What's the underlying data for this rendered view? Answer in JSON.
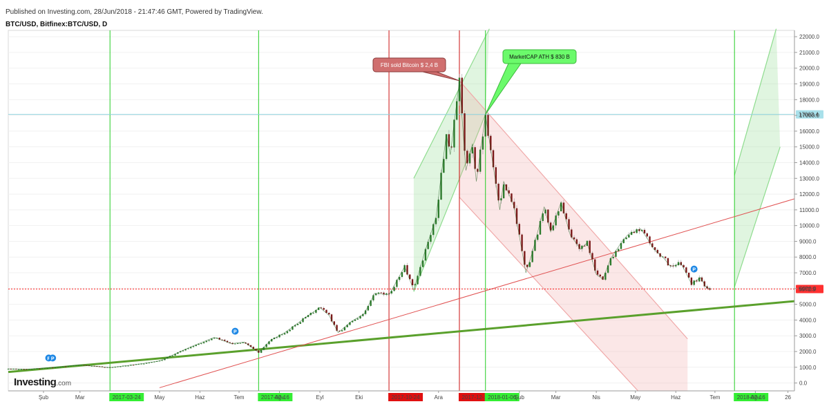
{
  "header": {
    "published": "Published on Investing.com, 28/Jun/2018 - 21:47:46 GMT, Powered by TradingView.",
    "symbol": "BTC/USD, Bitfinex:BTC/USD, D"
  },
  "logo": {
    "brand": "Investing",
    "suffix": ".com"
  },
  "chart_data": {
    "type": "candlestick",
    "title": "BTC/USD, Bitfinex:BTC/USD, D",
    "ylim": [
      -500,
      22400
    ],
    "y_ticks": [
      0,
      1000,
      2000,
      3000,
      4000,
      5000,
      6000,
      7000,
      8000,
      9000,
      10000,
      11000,
      12000,
      13000,
      14000,
      15000,
      16000,
      17000,
      18000,
      19000,
      20000,
      21000,
      22000
    ],
    "y_tick_labels": [
      "0.0",
      "1000.0",
      "2000.0",
      "3000.0",
      "4000.0",
      "5000.0",
      "6000.0",
      "7000.0",
      "8000.0",
      "9000.0",
      "10000.0",
      "11000.0",
      "12000.0",
      "13000.0",
      "14000.0",
      "15000.0",
      "16000.0",
      "17000.0",
      "18000.0",
      "19000.0",
      "20000.0",
      "21000.0",
      "22000.0"
    ],
    "x_range": [
      "2017-01-05",
      "2018-08-31"
    ],
    "x_ticks": [
      {
        "date": "2017-02-01",
        "label": "Şub"
      },
      {
        "date": "2017-03-01",
        "label": "Mar"
      },
      {
        "date": "2017-05-01",
        "label": "May"
      },
      {
        "date": "2017-06-01",
        "label": "Haz"
      },
      {
        "date": "2017-07-01",
        "label": "Tem"
      },
      {
        "date": "2017-08-01",
        "label": "Ağu"
      },
      {
        "date": "2017-09-01",
        "label": "Eyl"
      },
      {
        "date": "2017-10-01",
        "label": "Eki"
      },
      {
        "date": "2017-12-01",
        "label": "Ara"
      },
      {
        "date": "2018-02-01",
        "label": "Şub"
      },
      {
        "date": "2018-03-01",
        "label": "Mar"
      },
      {
        "date": "2018-04-01",
        "label": "Nis"
      },
      {
        "date": "2018-05-01",
        "label": "May"
      },
      {
        "date": "2018-06-01",
        "label": "Haz"
      },
      {
        "date": "2018-07-01",
        "label": "Tem"
      },
      {
        "date": "2018-08-01",
        "label": "Ağu"
      },
      {
        "date": "2018-08-26",
        "label": "26"
      }
    ],
    "price_path": [
      [
        "2017-01-05",
        900
      ],
      [
        "2017-01-20",
        880
      ],
      [
        "2017-02-10",
        1000
      ],
      [
        "2017-03-01",
        1150
      ],
      [
        "2017-03-24",
        980
      ],
      [
        "2017-04-15",
        1200
      ],
      [
        "2017-05-01",
        1400
      ],
      [
        "2017-05-25",
        2300
      ],
      [
        "2017-06-12",
        2900
      ],
      [
        "2017-06-25",
        2500
      ],
      [
        "2017-07-05",
        2600
      ],
      [
        "2017-07-16",
        1950
      ],
      [
        "2017-07-25",
        2700
      ],
      [
        "2017-08-05",
        3200
      ],
      [
        "2017-08-20",
        4100
      ],
      [
        "2017-09-01",
        4800
      ],
      [
        "2017-09-08",
        4300
      ],
      [
        "2017-09-15",
        3200
      ],
      [
        "2017-09-25",
        3900
      ],
      [
        "2017-10-05",
        4400
      ],
      [
        "2017-10-13",
        5700
      ],
      [
        "2017-10-24",
        5600
      ],
      [
        "2017-11-05",
        7400
      ],
      [
        "2017-11-12",
        5900
      ],
      [
        "2017-11-20",
        8200
      ],
      [
        "2017-11-29",
        10500
      ],
      [
        "2017-12-07",
        15800
      ],
      [
        "2017-12-10",
        14500
      ],
      [
        "2017-12-17",
        19200
      ],
      [
        "2017-12-22",
        13500
      ],
      [
        "2017-12-27",
        15200
      ],
      [
        "2017-12-30",
        12800
      ],
      [
        "2018-01-06",
        17063
      ],
      [
        "2018-01-17",
        11000
      ],
      [
        "2018-01-20",
        12800
      ],
      [
        "2018-01-28",
        11200
      ],
      [
        "2018-02-06",
        7000
      ],
      [
        "2018-02-11",
        8300
      ],
      [
        "2018-02-20",
        11200
      ],
      [
        "2018-02-25",
        9600
      ],
      [
        "2018-03-05",
        11500
      ],
      [
        "2018-03-12",
        9400
      ],
      [
        "2018-03-20",
        8500
      ],
      [
        "2018-03-25",
        8900
      ],
      [
        "2018-04-01",
        6900
      ],
      [
        "2018-04-06",
        6600
      ],
      [
        "2018-04-12",
        7900
      ],
      [
        "2018-04-20",
        8900
      ],
      [
        "2018-04-25",
        9400
      ],
      [
        "2018-05-05",
        9800
      ],
      [
        "2018-05-10",
        9200
      ],
      [
        "2018-05-15",
        8500
      ],
      [
        "2018-05-22",
        8000
      ],
      [
        "2018-05-28",
        7400
      ],
      [
        "2018-06-05",
        7600
      ],
      [
        "2018-06-10",
        6800
      ],
      [
        "2018-06-13",
        6300
      ],
      [
        "2018-06-20",
        6700
      ],
      [
        "2018-06-24",
        6100
      ],
      [
        "2018-06-28",
        5972.9
      ]
    ],
    "price_labels": [
      {
        "value": 17063.4,
        "label": "17063.4",
        "color": "#8fd3dd"
      },
      {
        "value": 5972.9,
        "label": "5972.9",
        "color": "#ff1f1f"
      }
    ],
    "vertical_lines": [
      {
        "date": "2017-03-24",
        "label": "2017-03-24",
        "color": "#22cc22"
      },
      {
        "date": "2017-07-16",
        "label": "2017-07-16",
        "color": "#22cc22"
      },
      {
        "date": "2017-10-24",
        "label": "2017-10-24",
        "color": "#cc1111"
      },
      {
        "date": "2017-12-17",
        "label": "2017-12-17",
        "color": "#cc1111"
      },
      {
        "date": "2018-01-06",
        "label": "2018-01-06",
        "color": "#22cc22"
      },
      {
        "date": "2018-07-16",
        "label": "2018-07-16",
        "color": "#22cc22"
      }
    ],
    "trend_lines": [
      {
        "name": "support",
        "from": [
          "2017-01-05",
          700
        ],
        "to": [
          "2018-08-31",
          5200
        ],
        "color": "#5aa02c"
      },
      {
        "name": "diagonal",
        "from": [
          "2017-05-01",
          -300
        ],
        "to": [
          "2018-08-31",
          11700
        ],
        "color": "#e05050"
      }
    ],
    "channels": [
      {
        "name": "up-channel-2017",
        "color": "#8edc8e",
        "upper": [
          [
            "2017-11-12",
            13000
          ],
          [
            "2018-01-09",
            22500
          ]
        ],
        "lower": [
          [
            "2017-11-12",
            5800
          ],
          [
            "2018-01-06",
            17063
          ]
        ]
      },
      {
        "name": "down-channel-2018",
        "color": "#f0a8a8",
        "upper": [
          [
            "2017-12-17",
            19200
          ],
          [
            "2018-06-10",
            2800
          ]
        ],
        "lower": [
          [
            "2017-12-17",
            11800
          ],
          [
            "2018-05-03",
            -500
          ]
        ],
        "box_end": "2018-06-10"
      },
      {
        "name": "up-channel-2018",
        "color": "#8edc8e",
        "upper": [
          [
            "2018-07-16",
            13200
          ],
          [
            "2018-08-17",
            22500
          ]
        ],
        "lower": [
          [
            "2018-07-16",
            6100
          ],
          [
            "2018-08-20",
            15000
          ]
        ]
      }
    ],
    "annotations": [
      {
        "text": "FBI sold Bitcoin $ 2,4 B",
        "date": "2017-12-17",
        "value": 19200,
        "bg": "#d06f6f",
        "color": "#ffffff"
      },
      {
        "text": "MarketCAP ATH $ 830 B",
        "date": "2018-01-06",
        "value": 17063,
        "bg": "#6bfa6b",
        "color": "#111111"
      }
    ],
    "markers": [
      {
        "date": "2017-02-05",
        "value": 1150,
        "text": "F"
      },
      {
        "date": "2017-02-08",
        "value": 1150,
        "text": "P"
      },
      {
        "date": "2017-06-28",
        "value": 2850,
        "text": "P"
      },
      {
        "date": "2018-06-15",
        "value": 6800,
        "text": "P"
      }
    ]
  }
}
